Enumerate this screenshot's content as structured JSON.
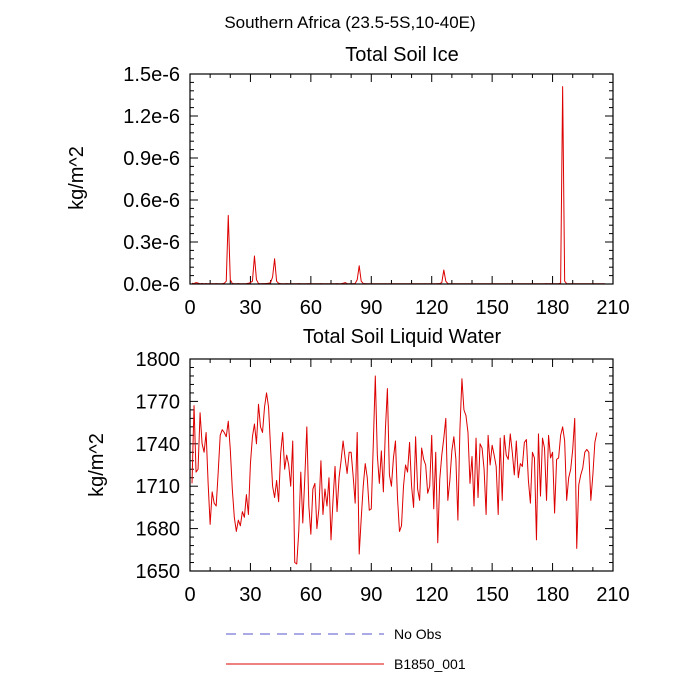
{
  "figure_title": "Southern Africa (23.5-5S,10-40E)",
  "legend": {
    "placement": "bottom",
    "entries": [
      {
        "label": "No Obs",
        "color": "#5555cc",
        "dash": true
      },
      {
        "label": "B1850_001",
        "color": "#dd0000",
        "dash": false
      }
    ]
  },
  "chart_data": [
    {
      "type": "line",
      "title": "Total Soil Ice",
      "ylabel": "kg/m^2",
      "xlabel": "",
      "xlim": [
        0,
        210
      ],
      "ylim": [
        0,
        1.5
      ],
      "x_ticks": [
        0,
        30,
        60,
        90,
        120,
        150,
        180,
        210
      ],
      "x_tick_labels": [
        "0",
        "30",
        "60",
        "90",
        "120",
        "150",
        "180",
        "210"
      ],
      "y_ticks": [
        0,
        0.3,
        0.6,
        0.9,
        1.2,
        1.5
      ],
      "y_tick_labels": [
        "0.0e-6",
        "0.3e-6",
        "0.6e-6",
        "0.9e-6",
        "1.2e-6",
        "1.5e-6"
      ],
      "y_unit_scale": "1e-6",
      "color": "#dd0000",
      "series": [
        {
          "values": [
            0.005,
            0.003,
            0.01,
            0.006,
            0.002,
            0.004,
            0.002,
            0.003,
            0.002,
            0.003,
            0.002,
            0.002,
            0.003,
            0.002,
            0.002,
            0.003,
            0.005,
            0.02,
            0.49,
            0.03,
            0.004,
            0.002,
            0.002,
            0.003,
            0.002,
            0.002,
            0.002,
            0.003,
            0.005,
            0.01,
            0.02,
            0.2,
            0.03,
            0.004,
            0.002,
            0.003,
            0.003,
            0.004,
            0.005,
            0.01,
            0.05,
            0.18,
            0.02,
            0.005,
            0.003,
            0.002,
            0.002,
            0.003,
            0.002,
            0.002,
            0.002,
            0.002,
            0.002,
            0.003,
            0.002,
            0.002,
            0.002,
            0.002,
            0.003,
            0.002,
            0.002,
            0.002,
            0.002,
            0.002,
            0.003,
            0.002,
            0.002,
            0.002,
            0.002,
            0.002,
            0.002,
            0.002,
            0.003,
            0.002,
            0.002,
            0.005,
            0.01,
            0.003,
            0.002,
            0.002,
            0.003,
            0.004,
            0.03,
            0.13,
            0.02,
            0.004,
            0.003,
            0.002,
            0.002,
            0.002,
            0.002,
            0.002,
            0.002,
            0.002,
            0.002,
            0.002,
            0.002,
            0.002,
            0.002,
            0.002,
            0.002,
            0.002,
            0.002,
            0.002,
            0.002,
            0.002,
            0.002,
            0.002,
            0.002,
            0.002,
            0.002,
            0.002,
            0.002,
            0.002,
            0.002,
            0.002,
            0.002,
            0.002,
            0.002,
            0.002,
            0.002,
            0.002,
            0.003,
            0.003,
            0.01,
            0.1,
            0.02,
            0.003,
            0.002,
            0.002,
            0.002,
            0.002,
            0.002,
            0.002,
            0.002,
            0.002,
            0.002,
            0.002,
            0.002,
            0.002,
            0.002,
            0.002,
            0.002,
            0.002,
            0.002,
            0.002,
            0.002,
            0.002,
            0.002,
            0.002,
            0.002,
            0.002,
            0.002,
            0.002,
            0.002,
            0.002,
            0.002,
            0.002,
            0.002,
            0.002,
            0.002,
            0.002,
            0.002,
            0.002,
            0.002,
            0.002,
            0.002,
            0.002,
            0.002,
            0.002,
            0.002,
            0.002,
            0.002,
            0.002,
            0.002,
            0.002,
            0.003,
            0.002,
            0.003,
            0.002,
            0.002,
            0.002,
            0.003,
            0.005,
            1.41,
            0.02,
            0.002,
            0.002,
            0.002,
            0.002,
            0.002,
            0.002,
            0.002,
            0.002,
            0.002,
            0.002,
            0.002,
            0.002,
            0.002,
            0.002,
            0.002,
            0.002,
            0.002,
            0.002,
            0.002,
            0.002
          ]
        }
      ]
    },
    {
      "type": "line",
      "title": "Total Soil Liquid Water",
      "ylabel": "kg/m^2",
      "xlabel": "",
      "xlim": [
        0,
        210
      ],
      "ylim": [
        1650,
        1800
      ],
      "x_ticks": [
        0,
        30,
        60,
        90,
        120,
        150,
        180,
        210
      ],
      "x_tick_labels": [
        "0",
        "30",
        "60",
        "90",
        "120",
        "150",
        "180",
        "210"
      ],
      "y_ticks": [
        1650,
        1680,
        1710,
        1740,
        1770,
        1800
      ],
      "y_tick_labels": [
        "1650",
        "1680",
        "1710",
        "1740",
        "1770",
        "1800"
      ],
      "color": "#dd0000",
      "series": [
        {
          "values": [
            1712,
            1767,
            1720,
            1722,
            1762,
            1740,
            1734,
            1748,
            1712,
            1683,
            1706,
            1698,
            1696,
            1720,
            1746,
            1750,
            1748,
            1745,
            1756,
            1736,
            1708,
            1688,
            1678,
            1686,
            1682,
            1692,
            1688,
            1704,
            1690,
            1726,
            1745,
            1754,
            1740,
            1768,
            1752,
            1748,
            1766,
            1776,
            1766,
            1737,
            1710,
            1702,
            1714,
            1699,
            1733,
            1748,
            1722,
            1732,
            1725,
            1710,
            1742,
            1656,
            1655,
            1678,
            1720,
            1684,
            1716,
            1752,
            1696,
            1676,
            1708,
            1712,
            1680,
            1694,
            1728,
            1690,
            1708,
            1696,
            1716,
            1672,
            1700,
            1724,
            1692,
            1716,
            1728,
            1742,
            1730,
            1719,
            1734,
            1734,
            1717,
            1698,
            1748,
            1662,
            1687,
            1710,
            1726,
            1716,
            1693,
            1694,
            1740,
            1788,
            1732,
            1712,
            1735,
            1706,
            1750,
            1779,
            1718,
            1710,
            1730,
            1742,
            1702,
            1678,
            1682,
            1710,
            1725,
            1720,
            1741,
            1710,
            1695,
            1745,
            1708,
            1700,
            1737,
            1729,
            1725,
            1705,
            1710,
            1746,
            1694,
            1734,
            1670,
            1715,
            1732,
            1744,
            1758,
            1700,
            1714,
            1735,
            1745,
            1729,
            1686,
            1750,
            1786,
            1764,
            1760,
            1748,
            1712,
            1731,
            1696,
            1744,
            1702,
            1740,
            1737,
            1722,
            1690,
            1746,
            1725,
            1739,
            1732,
            1724,
            1690,
            1744,
            1700,
            1746,
            1732,
            1729,
            1747,
            1734,
            1718,
            1742,
            1716,
            1726,
            1724,
            1741,
            1743,
            1714,
            1698,
            1734,
            1730,
            1672,
            1747,
            1703,
            1744,
            1737,
            1700,
            1746,
            1730,
            1734,
            1691,
            1729,
            1730,
            1746,
            1752,
            1742,
            1700,
            1716,
            1722,
            1736,
            1758,
            1666,
            1711,
            1718,
            1723,
            1734,
            1736,
            1734,
            1700,
            1718,
            1741,
            1748
          ]
        }
      ]
    }
  ]
}
